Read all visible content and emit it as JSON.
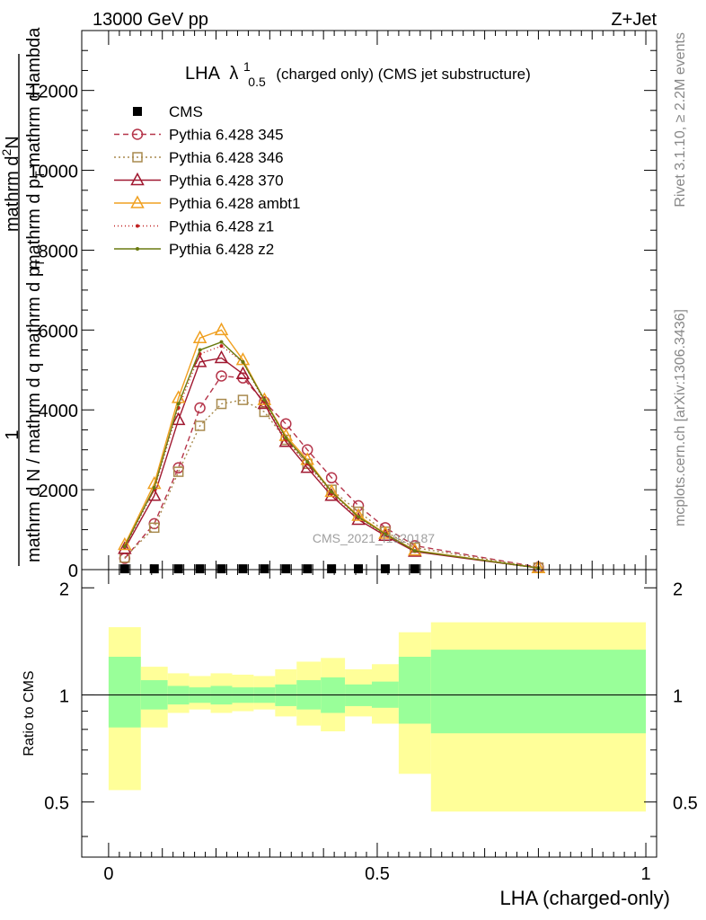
{
  "header": {
    "left": "13000 GeV pp",
    "right": "Z+Jet"
  },
  "title": {
    "prefix": "LHA",
    "symbol": "λ",
    "superscript": "1",
    "subscript": "0.5",
    "suffix": "(charged only) (CMS jet substructure)"
  },
  "side_labels": {
    "rivet": "Rivet 3.1.10, ≥ 2.2M events",
    "mcplots": "mcplots.cern.ch [arXiv:1306.3436]"
  },
  "watermark": "CMS_2021_I1920187",
  "colors": {
    "cms": "#000000",
    "p345": "#b5354a",
    "p346": "#a88a4e",
    "p370": "#a01830",
    "ambt1": "#f0a020",
    "z1": "#c02020",
    "z2": "#6a7a10",
    "band_yellow": "#ffff99",
    "band_green": "#99ff99"
  },
  "chart_data": [
    {
      "type": "line",
      "title": "LHA λ^1_0.5 (charged only) (CMS jet substructure)",
      "ylabel": "1 / mathrm d N / mathrm d q mathrm d p_T mathrm d^2N / mathrm d p_T mathrm d lambda",
      "ylabel_parts": {
        "numerator": "1",
        "denominator": "mathrm d N / mathrm d q mathrm d p",
        "denominator_sub": "T",
        "right_top": "mathrm d",
        "right_top_sup": "2",
        "right_top_end": "N",
        "right_bottom": "mathrm d p",
        "right_bottom_sub": "T",
        "right_bottom_end": "mathrm d lambda"
      },
      "xlim": [
        -0.05,
        1.02
      ],
      "ylim": [
        0,
        13500
      ],
      "yticks": [
        0,
        2000,
        4000,
        6000,
        8000,
        10000,
        12000
      ],
      "ytick_labels": [
        "0",
        "2000",
        "4000",
        "6000",
        "8000",
        "10000",
        "12000"
      ],
      "legend_position": "top-left",
      "x": [
        0.03,
        0.085,
        0.13,
        0.17,
        0.21,
        0.25,
        0.29,
        0.33,
        0.37,
        0.415,
        0.465,
        0.515,
        0.57,
        0.8
      ],
      "series": [
        {
          "name": "CMS",
          "key": "cms",
          "marker": "square",
          "dash": "",
          "values": [
            20,
            20,
            20,
            20,
            20,
            20,
            20,
            20,
            20,
            20,
            20,
            20,
            20,
            null
          ]
        },
        {
          "name": "Pythia 6.428 345",
          "key": "p345",
          "marker": "circle",
          "dash": "6,4",
          "values": [
            280,
            1150,
            2550,
            4050,
            4850,
            4800,
            4200,
            3650,
            3000,
            2300,
            1600,
            1050,
            600,
            60
          ]
        },
        {
          "name": "Pythia 6.428 346",
          "key": "p346",
          "marker": "square-open",
          "dash": "2,3",
          "values": [
            300,
            1050,
            2450,
            3600,
            4150,
            4250,
            3950,
            3250,
            2650,
            2000,
            1450,
            950,
            550,
            50
          ]
        },
        {
          "name": "Pythia 6.428 370",
          "key": "p370",
          "marker": "triangle",
          "dash": "",
          "values": [
            520,
            1850,
            3750,
            5200,
            5300,
            4900,
            4150,
            3200,
            2550,
            1850,
            1250,
            850,
            450,
            40
          ]
        },
        {
          "name": "Pythia 6.428 ambt1",
          "key": "ambt1",
          "marker": "triangle",
          "dash": "",
          "values": [
            620,
            2150,
            4300,
            5800,
            6000,
            5250,
            4250,
            3350,
            2750,
            1950,
            1350,
            900,
            480,
            40
          ]
        },
        {
          "name": "Pythia 6.428 z1",
          "key": "z1",
          "marker": "dot",
          "dash": "1,3",
          "values": [
            560,
            2000,
            4050,
            5400,
            5600,
            5200,
            4200,
            3250,
            2650,
            1900,
            1300,
            880,
            460,
            40
          ]
        },
        {
          "name": "Pythia 6.428 z2",
          "key": "z2",
          "marker": "dot",
          "dash": "",
          "values": [
            580,
            2050,
            4150,
            5500,
            5700,
            5200,
            4250,
            3300,
            2700,
            1950,
            1320,
            890,
            470,
            40
          ]
        }
      ]
    },
    {
      "type": "area",
      "ylabel": "Ratio to CMS",
      "xlabel": "LHA (charged-only)",
      "xlim": [
        -0.05,
        1.02
      ],
      "ylim": [
        0.35,
        2.25
      ],
      "yticks": [
        0.5,
        1,
        2
      ],
      "ytick_labels": [
        "0.5",
        "1",
        "2"
      ],
      "xticks": [
        0,
        0.5,
        1
      ],
      "xtick_labels": [
        "0",
        "0.5",
        "1"
      ],
      "bins": [
        {
          "lo": 0.0,
          "hi": 0.06,
          "yellow": [
            0.54,
            1.55
          ],
          "green": [
            0.81,
            1.28
          ]
        },
        {
          "lo": 0.06,
          "hi": 0.11,
          "yellow": [
            0.81,
            1.2
          ],
          "green": [
            0.91,
            1.1
          ]
        },
        {
          "lo": 0.11,
          "hi": 0.15,
          "yellow": [
            0.89,
            1.15
          ],
          "green": [
            0.94,
            1.06
          ]
        },
        {
          "lo": 0.15,
          "hi": 0.19,
          "yellow": [
            0.91,
            1.13
          ],
          "green": [
            0.95,
            1.05
          ]
        },
        {
          "lo": 0.19,
          "hi": 0.23,
          "yellow": [
            0.89,
            1.15
          ],
          "green": [
            0.94,
            1.06
          ]
        },
        {
          "lo": 0.23,
          "hi": 0.27,
          "yellow": [
            0.9,
            1.14
          ],
          "green": [
            0.95,
            1.05
          ]
        },
        {
          "lo": 0.27,
          "hi": 0.31,
          "yellow": [
            0.91,
            1.13
          ],
          "green": [
            0.95,
            1.05
          ]
        },
        {
          "lo": 0.31,
          "hi": 0.35,
          "yellow": [
            0.87,
            1.18
          ],
          "green": [
            0.93,
            1.07
          ]
        },
        {
          "lo": 0.35,
          "hi": 0.395,
          "yellow": [
            0.82,
            1.24
          ],
          "green": [
            0.91,
            1.1
          ]
        },
        {
          "lo": 0.395,
          "hi": 0.44,
          "yellow": [
            0.79,
            1.27
          ],
          "green": [
            0.89,
            1.12
          ]
        },
        {
          "lo": 0.44,
          "hi": 0.49,
          "yellow": [
            0.87,
            1.18
          ],
          "green": [
            0.93,
            1.07
          ]
        },
        {
          "lo": 0.49,
          "hi": 0.54,
          "yellow": [
            0.83,
            1.22
          ],
          "green": [
            0.92,
            1.09
          ]
        },
        {
          "lo": 0.54,
          "hi": 0.6,
          "yellow": [
            0.6,
            1.5
          ],
          "green": [
            0.83,
            1.28
          ]
        },
        {
          "lo": 0.6,
          "hi": 1.0,
          "yellow": [
            0.47,
            1.6
          ],
          "green": [
            0.78,
            1.34
          ]
        }
      ],
      "reference_line": 1
    }
  ]
}
